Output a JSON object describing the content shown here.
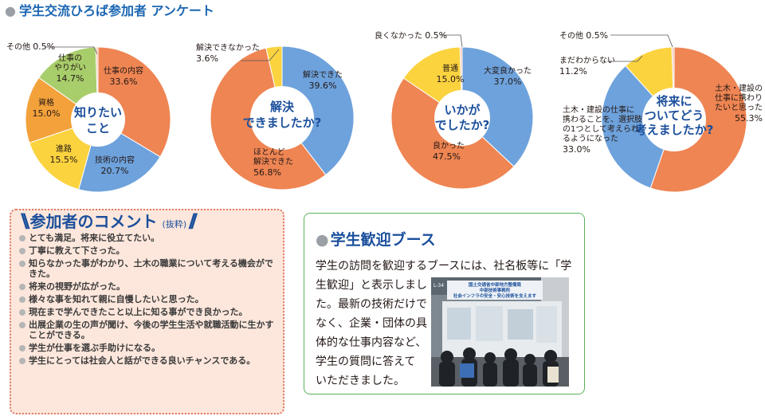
{
  "title": "学生交流ひろば参加者 アンケート",
  "chart_data": [
    {
      "type": "pie",
      "title": "知りたいこと",
      "title_lines": [
        "知りたい",
        "こと"
      ],
      "series": [
        {
          "values": [
            33.6,
            20.7,
            15.5,
            15.0,
            14.7,
            0.5
          ]
        }
      ],
      "categories": [
        "仕事の内容",
        "技術の内容",
        "進路",
        "資格",
        "仕事のやりがい",
        "その他"
      ],
      "label_lines": [
        [
          "仕事の内容"
        ],
        [
          "技術の内容"
        ],
        [
          "進路"
        ],
        [
          "資格"
        ],
        [
          "仕事の",
          "やりがい"
        ],
        [
          "その他"
        ]
      ],
      "value_labels": [
        "33.6%",
        "20.7%",
        "15.5%",
        "15.0%",
        "14.7%",
        "0.5%"
      ],
      "colors": [
        "#ee8553",
        "#6ea2dc",
        "#fbd33f",
        "#f3a13b",
        "#a8cd6b",
        "#f6c7b3"
      ]
    },
    {
      "type": "pie",
      "title": "解決できましたか?",
      "title_lines": [
        "解決",
        "できましたか?"
      ],
      "series": [
        {
          "values": [
            39.6,
            56.8,
            3.6
          ]
        }
      ],
      "categories": [
        "解決できた",
        "ほとんど解決できた",
        "解決できなかった"
      ],
      "label_lines": [
        [
          "解決できた"
        ],
        [
          "ほとんど",
          "解決できた"
        ],
        [
          "解決できなかった"
        ]
      ],
      "value_labels": [
        "39.6%",
        "56.8%",
        "3.6%"
      ],
      "colors": [
        "#6ea2dc",
        "#ee8553",
        "#fbd33f"
      ]
    },
    {
      "type": "pie",
      "title": "いかがでしたか?",
      "title_lines": [
        "いかが",
        "でしたか?"
      ],
      "series": [
        {
          "values": [
            37.0,
            47.5,
            15.0,
            0.5
          ]
        }
      ],
      "categories": [
        "大変良かった",
        "良かった",
        "普通",
        "良くなかった"
      ],
      "label_lines": [
        [
          "大変良かった"
        ],
        [
          "良かった"
        ],
        [
          "普通"
        ],
        [
          "良くなかった"
        ]
      ],
      "value_labels": [
        "37.0%",
        "47.5%",
        "15.0%",
        "0.5%"
      ],
      "colors": [
        "#6ea2dc",
        "#ee8553",
        "#fbd33f",
        "#f6c7b3"
      ]
    },
    {
      "type": "pie",
      "title": "将来についてどう考えましたか?",
      "title_lines": [
        "将来に",
        "ついてどう",
        "考えましたか?"
      ],
      "series": [
        {
          "values": [
            55.3,
            33.0,
            11.2,
            0.5
          ]
        }
      ],
      "categories": [
        "土木・建設の仕事に携わりたいと思った",
        "土木・建設の仕事に携わることを、選択肢の1つとして考えられるようになった",
        "まだわからない",
        "その他"
      ],
      "label_lines": [
        [
          "土木・建設の",
          "仕事に携わり",
          "たいと思った"
        ],
        [
          "土木・建設の仕事に",
          "携わることを、選択肢",
          "の1つとして考えられ",
          "るようになった"
        ],
        [
          "まだわからない"
        ],
        [
          "その他"
        ]
      ],
      "value_labels": [
        "55.3%",
        "33.0%",
        "11.2%",
        "0.5%"
      ],
      "colors": [
        "#ee8553",
        "#6ea2dc",
        "#fbd33f",
        "#f6c7b3"
      ]
    }
  ],
  "comments": {
    "title": "参加者のコメント",
    "note": "(抜粋)",
    "items": [
      "とても満足。将来に役立てたい。",
      "丁寧に教えて下さった。",
      "知らなかった事がわかり、土木の職業について考える機会ができた。",
      "将来の視野が広がった。",
      "様々な事を知れて親に自慢したいと思った。",
      "現在まで学んできたこと以上に知る事ができ良かった。",
      "出展企業の生の声が聞け、今後の学生生活や就職活動に生かすことができる。",
      "学生が仕事を選ぶ手助けになる。",
      "学生にとっては社会人と話ができる良いチャンスである。"
    ]
  },
  "booth": {
    "title": "学生歓迎ブース",
    "text_lines": [
      "学生の訪問を歓迎するブースには、社名板等に「学",
      "生歓迎」と表示しまし",
      "た。最新の技術だけで",
      "なく、企業・団体の具",
      "体的な仕事内容など、",
      "学生の質問に答えて",
      "いただきました。"
    ],
    "photo": {
      "banner_lines": [
        "国土交通省中部地方整備局",
        "中部技術事務所",
        "社会インフラの安全・安心技術を支えます"
      ],
      "booth_number": "L-34"
    }
  }
}
